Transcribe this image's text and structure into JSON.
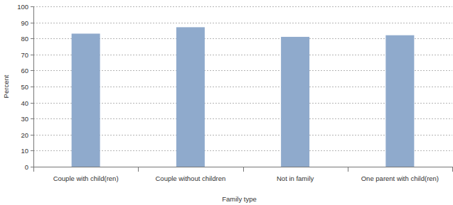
{
  "chart_data": {
    "type": "bar",
    "x_label": "Family type",
    "y_label": "Percent",
    "categories": [
      "Couple with child(ren)",
      "Couple without children",
      "Not in family",
      "One parent with child(ren)"
    ],
    "values": [
      83,
      87,
      81,
      82
    ],
    "color": "#8faacc",
    "ylim": [
      0,
      100
    ],
    "yticks": [
      0,
      10,
      20,
      30,
      40,
      50,
      60,
      70,
      80,
      90,
      100
    ],
    "grid": true
  }
}
